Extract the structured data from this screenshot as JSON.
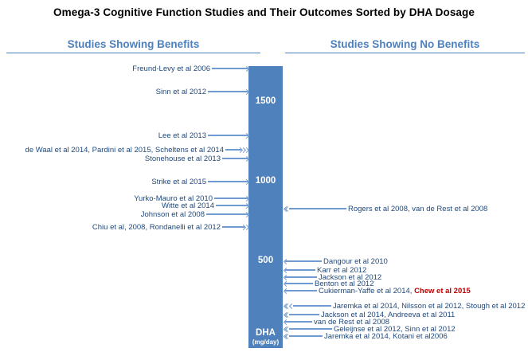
{
  "title": "Omega-3 Cognitive Function Studies and Their Outcomes Sorted by DHA Dosage",
  "headers": {
    "left": "Studies Showing Benefits",
    "right": "Studies Showing No Benefits"
  },
  "axis": {
    "unit_label": "DHA",
    "unit_sub": "(mg/day)",
    "ticks": [
      1500,
      1000,
      500
    ]
  },
  "colors": {
    "bar": "#4F81BD",
    "arrow": "#6F9BD2",
    "study_text": "#1F497D",
    "header_text": "#4E81BD",
    "accent_red": "#C00000",
    "title_text": "#000000"
  },
  "chart_data": {
    "type": "scatter",
    "title": "Omega-3 Cognitive Function Studies and Their Outcomes Sorted by DHA Dosage",
    "ylabel": "DHA (mg/day)",
    "ylim": [
      0,
      1725
    ],
    "grid": false,
    "legend_position": "top",
    "series": [
      {
        "name": "Studies Showing Benefits",
        "side": "left",
        "points": [
          {
            "label": "Freund-Levy et al 2006",
            "dha": 1710,
            "heads": 1,
            "arrow": 45
          },
          {
            "label": "Sinn et al 2012",
            "dha": 1565,
            "heads": 1,
            "arrow": 50
          },
          {
            "label": "Lee et al 2013",
            "dha": 1290,
            "heads": 1,
            "arrow": 50
          },
          {
            "label": "de Waal et al 2014, Pardini et al 2015, Scheltens et al 2014",
            "dha": 1200,
            "heads": 3,
            "arrow": 20
          },
          {
            "label": "Stonehouse et al 2013",
            "dha": 1145,
            "heads": 1,
            "arrow": 32
          },
          {
            "label": "Strike et al 2015",
            "dha": 1000,
            "heads": 1,
            "arrow": 50
          },
          {
            "label": "Yurko-Mauro et al 2010",
            "dha": 895,
            "heads": 1,
            "arrow": 42
          },
          {
            "label": "Witte et al 2014",
            "dha": 850,
            "heads": 1,
            "arrow": 40
          },
          {
            "label": "Johnson et al 2008",
            "dha": 795,
            "heads": 1,
            "arrow": 52
          },
          {
            "label": "Chiu et al, 2008, Rondanelli et al 2012",
            "dha": 715,
            "heads": 2,
            "arrow": 28
          }
        ]
      },
      {
        "name": "Studies Showing No Benefits",
        "side": "right",
        "points": [
          {
            "label": "Rogers et al 2008, van de Rest et al 2008",
            "dha": 830,
            "heads": 2,
            "arrow": 72
          },
          {
            "label": "Dangour et al 2010",
            "dha": 500,
            "heads": 1,
            "arrow": 46
          },
          {
            "label": "Karr et al 2012",
            "dha": 445,
            "heads": 1,
            "arrow": 38
          },
          {
            "label": "Jackson et al 2012",
            "dha": 400,
            "heads": 1,
            "arrow": 40
          },
          {
            "label": "Benton et al 2012",
            "dha": 360,
            "heads": 1,
            "arrow": 35
          },
          {
            "label": "Cukierman-Yaffe et al 2014, ",
            "label_accent": "Chew et al 2015",
            "dha": 315,
            "heads": 1,
            "arrow": 40
          },
          {
            "label": "Jaremka et al 2014, Nilsson et al 2012, Stough et al 2012",
            "dha": 220,
            "heads": 3,
            "arrow": 48
          },
          {
            "label": "Jackson et al 2014, Andreeva et al 2011",
            "dha": 165,
            "heads": 2,
            "arrow": 38
          },
          {
            "label": "van de Rest et al 2008",
            "dha": 120,
            "heads": 1,
            "arrow": 34
          },
          {
            "label": "Geleijnse et al 2012, Sinn et al 2012",
            "dha": 75,
            "heads": 2,
            "arrow": 54
          },
          {
            "label": "Jaremka et al 2014, Kotani et al2006",
            "dha": 30,
            "heads": 2,
            "arrow": 42
          }
        ]
      }
    ]
  }
}
